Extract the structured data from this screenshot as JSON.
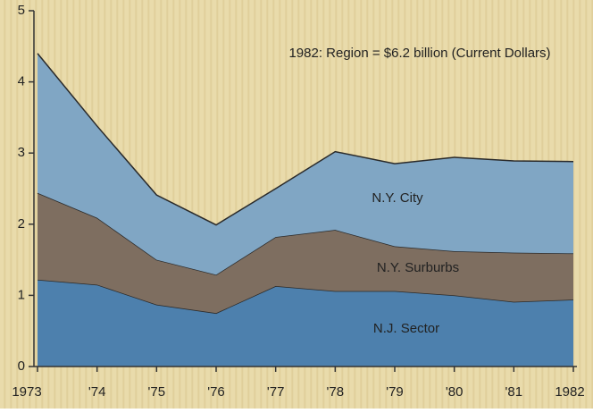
{
  "chart_data": {
    "type": "stacked-area",
    "annotation": "1982: Region = $6.2 billion (Current Dollars)",
    "categories": [
      "1973",
      "'74",
      "'75",
      "'76",
      "'77",
      "'78",
      "'79",
      "'80",
      "'81",
      "1982"
    ],
    "series": [
      {
        "name": "N.J. Sector",
        "color": "#4d80ad",
        "values": [
          1.22,
          1.15,
          0.87,
          0.75,
          1.13,
          1.06,
          1.06,
          1.0,
          0.91,
          0.94
        ]
      },
      {
        "name": "N.Y. Surburbs",
        "color": "#7e6e60",
        "values": [
          1.22,
          0.94,
          0.63,
          0.54,
          0.69,
          0.86,
          0.63,
          0.62,
          0.69,
          0.65
        ]
      },
      {
        "name": "N.Y. City",
        "color": "#80a6c4",
        "values": [
          1.96,
          1.29,
          0.91,
          0.7,
          0.68,
          1.1,
          1.16,
          1.32,
          1.29,
          1.29
        ]
      }
    ],
    "ylim": [
      0,
      5
    ],
    "yticks": [
      0,
      1,
      2,
      3,
      4,
      5
    ]
  }
}
